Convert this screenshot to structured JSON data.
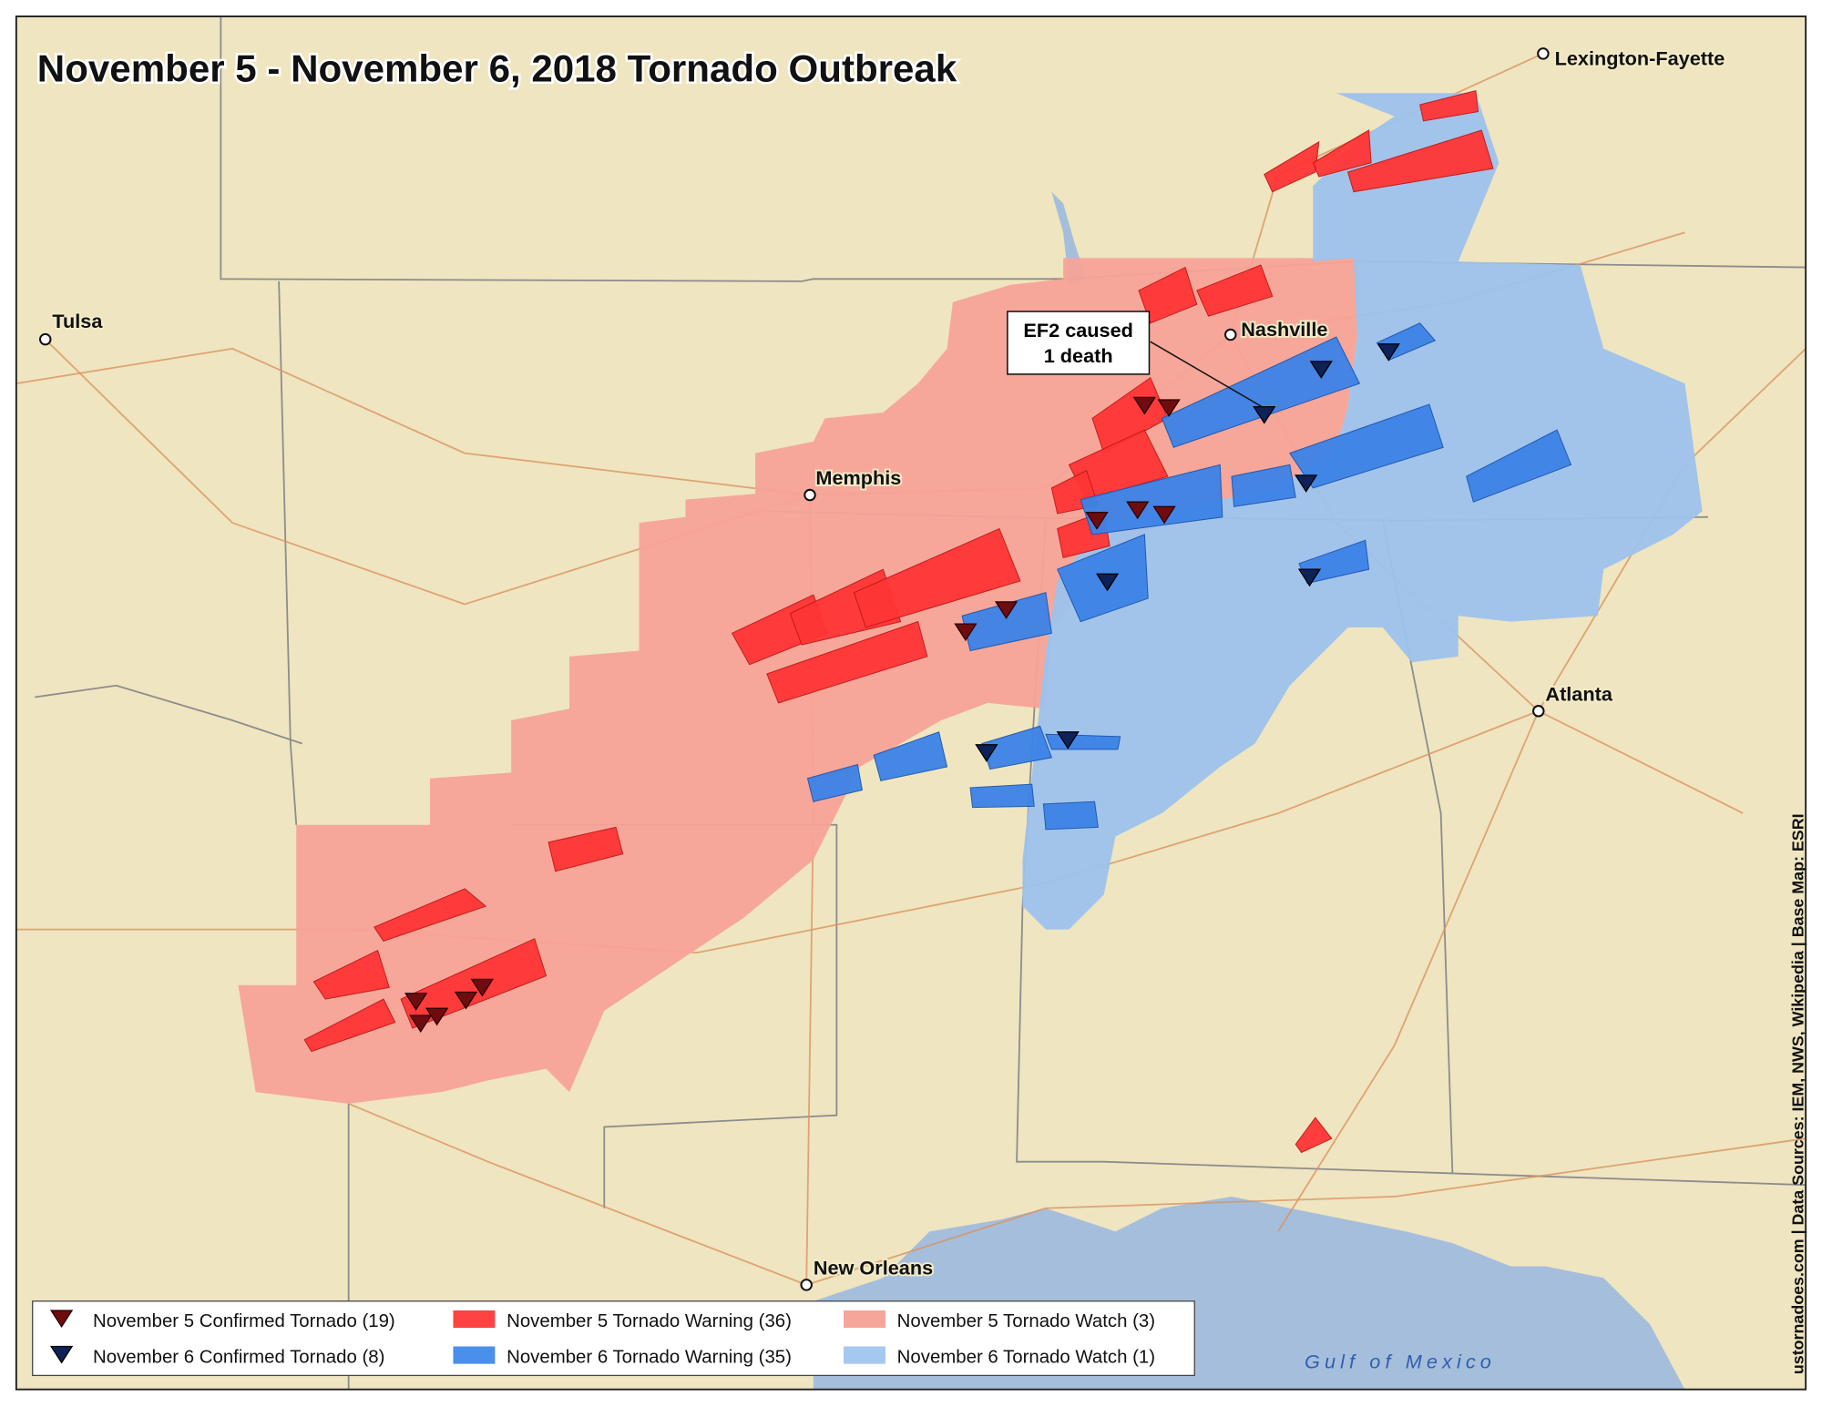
{
  "title": "November 5 - November 6, 2018 Tornado Outbreak",
  "cities": [
    {
      "name": "Lexington-Fayette"
    },
    {
      "name": "Tulsa"
    },
    {
      "name": "Nashville"
    },
    {
      "name": "Memphis"
    },
    {
      "name": "Atlanta"
    },
    {
      "name": "New Orleans"
    }
  ],
  "annotation": {
    "lines": [
      "EF2 caused",
      "1 death"
    ]
  },
  "legend": [
    {
      "label": "November 5 Confirmed Tornado (19)"
    },
    {
      "label": "November 5 Tornado Warning (36)"
    },
    {
      "label": "November 5 Tornado Watch (3)"
    },
    {
      "label": "November 6 Confirmed Tornado (8)"
    },
    {
      "label": "November 6 Tornado Warning (35)"
    },
    {
      "label": "November 6 Tornado Watch (1)"
    }
  ],
  "water_label": "Gulf of Mexico",
  "credit": "ustornadoes.com | Data Sources: IEM, NWS, Wikipedia | Base Map: ESRI"
}
